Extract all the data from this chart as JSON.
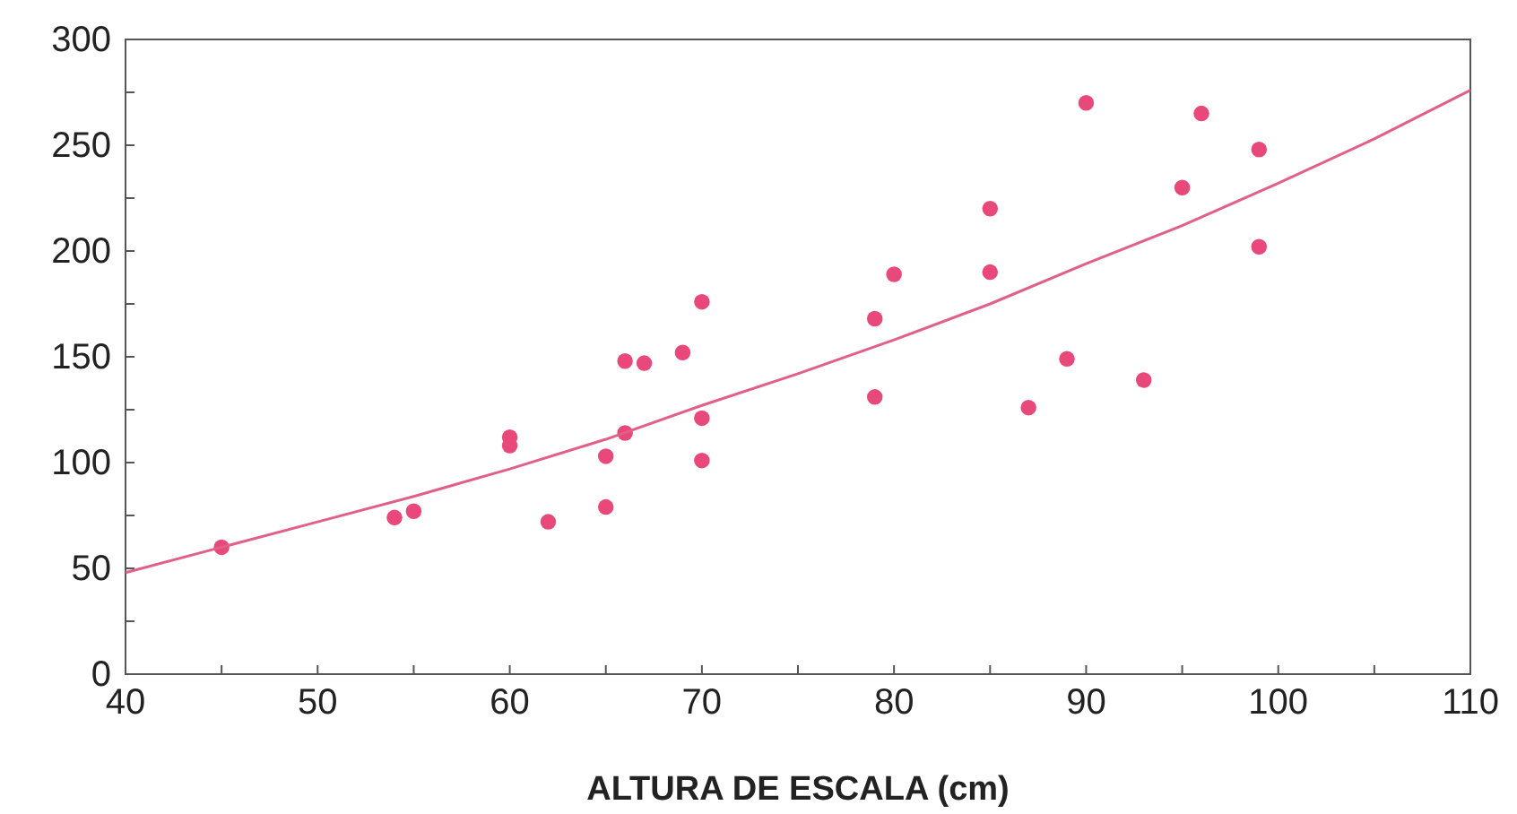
{
  "chart_data": {
    "type": "scatter",
    "xlabel": "ALTURA DE ESCALA (cm)",
    "xlim": [
      40,
      110
    ],
    "xticks": [
      40,
      {
        "value": 45,
        "label": null
      },
      50,
      {
        "value": 55,
        "label": null
      },
      60,
      {
        "value": 65,
        "label": null
      },
      70,
      {
        "value": 75,
        "label": null
      },
      80,
      {
        "value": 85,
        "label": null
      },
      90,
      {
        "value": 95,
        "label": null
      },
      100,
      {
        "value": 105,
        "label": null
      },
      110
    ],
    "ylim": [
      0,
      300
    ],
    "yticks": [
      0,
      {
        "value": 25,
        "label": null
      },
      50,
      {
        "value": 75,
        "label": null
      },
      100,
      {
        "value": 125,
        "label": null
      },
      150,
      {
        "value": 175,
        "label": null
      },
      200,
      {
        "value": 225,
        "label": null
      },
      250,
      {
        "value": 275,
        "label": null
      },
      300
    ],
    "marker": "circle",
    "grid": false,
    "series": [
      {
        "color": "#e8487a",
        "x": [
          45,
          54,
          55,
          60,
          60,
          62,
          65,
          65,
          66,
          66,
          67,
          69,
          70,
          70,
          70,
          79,
          79,
          80,
          85,
          85,
          87,
          89,
          90,
          93,
          95,
          96,
          99,
          99
        ],
        "values": [
          60,
          74,
          77,
          112,
          108,
          72,
          103,
          79,
          148,
          114,
          147,
          152,
          176,
          121,
          101,
          168,
          131,
          189,
          220,
          190,
          126,
          149,
          270,
          139,
          230,
          265,
          248,
          202
        ]
      },
      {
        "type": "line",
        "color": "#e06088",
        "marker": "none",
        "x": [
          40,
          45,
          50,
          55,
          60,
          65,
          70,
          75,
          80,
          85,
          90,
          95,
          100,
          105,
          110
        ],
        "values": [
          48,
          60,
          72,
          84,
          97,
          111,
          127,
          142,
          158,
          175,
          194,
          212,
          232,
          253,
          276
        ]
      }
    ]
  }
}
